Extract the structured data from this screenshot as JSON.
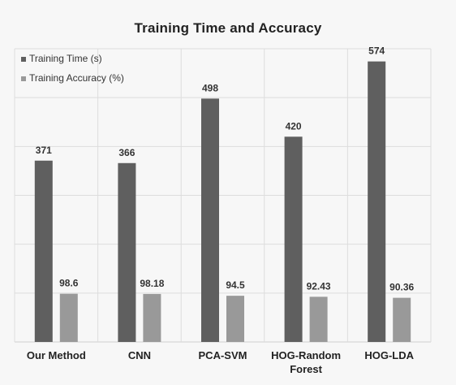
{
  "chart_data": {
    "type": "bar",
    "title": "Training Time and Accuracy",
    "categories": [
      "Our Method",
      "CNN",
      "PCA-SVM",
      "HOG-Random Forest",
      "HOG-LDA"
    ],
    "category_lines": [
      [
        "Our Method"
      ],
      [
        "CNN"
      ],
      [
        "PCA-SVM"
      ],
      [
        "HOG-Random",
        "Forest"
      ],
      [
        "HOG-LDA"
      ]
    ],
    "series": [
      {
        "name": "Training Time (s)",
        "values": [
          371,
          366,
          498,
          420,
          574
        ],
        "labels": [
          "371",
          "366",
          "498",
          "420",
          "574"
        ],
        "color": "#5f5f5f"
      },
      {
        "name": "Training Accuracy (%)",
        "values": [
          98.6,
          98.18,
          94.5,
          92.43,
          90.36
        ],
        "labels": [
          "98.6",
          "98.18",
          "94.5",
          "92.43",
          "90.36"
        ],
        "color": "#999999"
      }
    ],
    "xlabel": "",
    "ylabel": "",
    "legend": "top-left",
    "grid": true,
    "y_axis_labels": false,
    "ylim": [
      0,
      600
    ]
  }
}
